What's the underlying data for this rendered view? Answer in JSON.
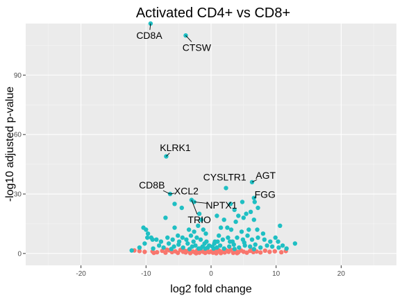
{
  "chart_data": {
    "type": "scatter",
    "title": "Activated CD4+ vs CD8+",
    "xlabel": "log2 fold change",
    "ylabel": "-log10 adjusted p-value",
    "xlim": [
      -28.5,
      28.5
    ],
    "ylim": [
      -6,
      116
    ],
    "x_ticks": [
      -20,
      -10,
      0,
      10,
      20
    ],
    "y_ticks": [
      0,
      30,
      60,
      90
    ],
    "x_tick_labels": [
      "-20",
      "-10",
      "0",
      "10",
      "20"
    ],
    "y_tick_labels": [
      "0",
      "30",
      "60",
      "90"
    ],
    "grid": true,
    "legend": "none",
    "colors": {
      "panel": "#EBEBEB",
      "grid_major": "#FFFFFF",
      "significant": "#1FBFC3",
      "not_significant": "#F8766D",
      "tick": "#4D4D4D"
    },
    "series": [
      {
        "color": "#F8766D",
        "points": [
          [
            -11.8,
            1.5
          ],
          [
            -11.0,
            1.2
          ],
          [
            -10.2,
            0.8
          ],
          [
            -9.0,
            1.0
          ],
          [
            -8.3,
            0.6
          ],
          [
            -7.5,
            1.3
          ],
          [
            -7.0,
            0.4
          ],
          [
            -6.4,
            1.6
          ],
          [
            -6.0,
            0.7
          ],
          [
            -5.5,
            1.1
          ],
          [
            -5.1,
            0.3
          ],
          [
            -4.7,
            1.8
          ],
          [
            -4.3,
            0.9
          ],
          [
            -3.9,
            0.5
          ],
          [
            -3.5,
            1.4
          ],
          [
            -3.2,
            0.2
          ],
          [
            -2.8,
            1.0
          ],
          [
            -2.5,
            0.6
          ],
          [
            -2.1,
            1.7
          ],
          [
            -1.8,
            0.4
          ],
          [
            -1.5,
            1.2
          ],
          [
            -1.2,
            0.8
          ],
          [
            -0.9,
            0.3
          ],
          [
            -0.6,
            1.5
          ],
          [
            -0.3,
            0.6
          ],
          [
            0.0,
            1.0
          ],
          [
            0.3,
            0.4
          ],
          [
            0.6,
            1.3
          ],
          [
            0.9,
            0.7
          ],
          [
            1.2,
            1.6
          ],
          [
            1.5,
            0.2
          ],
          [
            1.8,
            1.1
          ],
          [
            2.1,
            0.5
          ],
          [
            2.4,
            1.4
          ],
          [
            2.7,
            0.8
          ],
          [
            3.0,
            1.9
          ],
          [
            3.4,
            0.3
          ],
          [
            3.8,
            1.2
          ],
          [
            4.2,
            0.6
          ],
          [
            4.6,
            1.5
          ],
          [
            5.0,
            0.9
          ],
          [
            5.5,
            0.4
          ],
          [
            6.0,
            1.3
          ],
          [
            6.5,
            0.7
          ],
          [
            7.0,
            1.0
          ],
          [
            7.6,
            0.5
          ],
          [
            8.3,
            1.4
          ],
          [
            9.0,
            0.8
          ],
          [
            9.8,
            1.1
          ],
          [
            10.8,
            0.6
          ],
          [
            11.5,
            1.2
          ],
          [
            -8.8,
            0.3
          ],
          [
            -6.8,
            1.9
          ],
          [
            -4.0,
            1.3
          ],
          [
            -2.3,
            0.1
          ],
          [
            -0.8,
            1.9
          ],
          [
            0.8,
            0.1
          ],
          [
            2.2,
            1.8
          ],
          [
            4.0,
            0.2
          ],
          [
            6.2,
            1.8
          ]
        ]
      },
      {
        "color": "#1FBFC3",
        "points": [
          [
            -9.3,
            116
          ],
          [
            -3.9,
            110
          ],
          [
            -6.9,
            49
          ],
          [
            6.3,
            36
          ],
          [
            2.3,
            33
          ],
          [
            6.6,
            28
          ],
          [
            6.7,
            26
          ],
          [
            -6.3,
            30
          ],
          [
            -3.0,
            27
          ],
          [
            -2.6,
            26
          ],
          [
            -5.6,
            25
          ],
          [
            4.8,
            26
          ],
          [
            3.0,
            25
          ],
          [
            7.2,
            23
          ],
          [
            3.6,
            22
          ],
          [
            5.4,
            20
          ],
          [
            6.1,
            21
          ],
          [
            -4.5,
            23
          ],
          [
            -1.8,
            20
          ],
          [
            4.2,
            19
          ],
          [
            0.9,
            19
          ],
          [
            5.0,
            18
          ],
          [
            6.6,
            17
          ],
          [
            -7.0,
            18
          ],
          [
            -2.0,
            14
          ],
          [
            -1.5,
            17
          ],
          [
            2.0,
            17
          ],
          [
            3.8,
            16
          ],
          [
            -10.4,
            13
          ],
          [
            -10.0,
            12
          ],
          [
            -9.7,
            10
          ],
          [
            -9.8,
            8
          ],
          [
            -9.2,
            8
          ],
          [
            -9.0,
            7
          ],
          [
            -8.4,
            7
          ],
          [
            10.6,
            14
          ],
          [
            12.9,
            5
          ],
          [
            9.9,
            8
          ],
          [
            10.3,
            6
          ],
          [
            8.0,
            10
          ],
          [
            7.1,
            12
          ],
          [
            5.8,
            12
          ],
          [
            4.7,
            11
          ],
          [
            3.1,
            12
          ],
          [
            2.5,
            13
          ],
          [
            1.5,
            13
          ],
          [
            -5.6,
            13
          ],
          [
            -3.4,
            12
          ],
          [
            -2.6,
            11
          ],
          [
            -1.2,
            12
          ],
          [
            -0.8,
            10
          ],
          [
            -12.2,
            1.5
          ],
          [
            -6.7,
            8
          ],
          [
            -5.9,
            7
          ],
          [
            -5.1,
            9
          ],
          [
            -4.4,
            8
          ],
          [
            -3.8,
            7
          ],
          [
            -3.1,
            9
          ],
          [
            -2.2,
            8
          ],
          [
            -1.6,
            7
          ],
          [
            -0.7,
            6
          ],
          [
            0.6,
            6
          ],
          [
            1.2,
            9
          ],
          [
            1.8,
            7
          ],
          [
            2.6,
            8
          ],
          [
            3.3,
            6
          ],
          [
            4.0,
            8
          ],
          [
            4.9,
            7
          ],
          [
            5.6,
            9
          ],
          [
            6.3,
            7
          ],
          [
            7.2,
            8
          ],
          [
            8.2,
            7
          ],
          [
            -8.0,
            4
          ],
          [
            -7.3,
            3
          ],
          [
            -6.5,
            5
          ],
          [
            -5.7,
            3.5
          ],
          [
            -5.0,
            4.5
          ],
          [
            -4.3,
            3
          ],
          [
            -3.6,
            5
          ],
          [
            -2.9,
            3.5
          ],
          [
            -2.4,
            4
          ],
          [
            -1.9,
            2.5
          ],
          [
            -1.3,
            3.5
          ],
          [
            -0.9,
            2.5
          ],
          [
            -0.5,
            3
          ],
          [
            0.4,
            2.5
          ],
          [
            0.9,
            3
          ],
          [
            1.4,
            4
          ],
          [
            2.0,
            2.5
          ],
          [
            2.8,
            3.5
          ],
          [
            3.5,
            4.5
          ],
          [
            4.3,
            3
          ],
          [
            5.2,
            4
          ],
          [
            6.0,
            3.5
          ],
          [
            6.8,
            4.5
          ],
          [
            7.6,
            3
          ],
          [
            8.6,
            4
          ],
          [
            9.4,
            3.5
          ],
          [
            10.4,
            3
          ],
          [
            11.6,
            2.5
          ],
          [
            -11.0,
            3
          ],
          [
            -10.2,
            5
          ],
          [
            -7.7,
            6
          ],
          [
            -1.0,
            5
          ],
          [
            0.5,
            5
          ],
          [
            1.0,
            6
          ],
          [
            -0.3,
            4
          ],
          [
            0.2,
            3.5
          ],
          [
            -2.7,
            6
          ],
          [
            2.9,
            6
          ],
          [
            -4.9,
            6
          ],
          [
            5.1,
            5.5
          ],
          [
            -8.9,
            2.5
          ],
          [
            9.1,
            6
          ],
          [
            11.0,
            4
          ],
          [
            -6.1,
            2.3
          ],
          [
            6.6,
            2.2
          ],
          [
            -3.3,
            2.2
          ],
          [
            3.6,
            2.3
          ],
          [
            -1.6,
            2.6
          ]
        ]
      }
    ],
    "annotations": [
      {
        "label": "CD8A",
        "x": -9.3,
        "y": 116,
        "tx": -9.5,
        "ty": 110
      },
      {
        "label": "CTSW",
        "x": -3.9,
        "y": 110,
        "tx": -2.2,
        "ty": 104
      },
      {
        "label": "KLRK1",
        "x": -6.9,
        "y": 49,
        "tx": -5.5,
        "ty": 53.5
      },
      {
        "label": "CYSLTR1",
        "x": 2.3,
        "y": 33,
        "tx": 2.1,
        "ty": 38.5
      },
      {
        "label": "AGT",
        "x": 6.3,
        "y": 36,
        "tx": 8.4,
        "ty": 39.5
      },
      {
        "label": "FGG",
        "x": 6.6,
        "y": 28,
        "tx": 8.3,
        "ty": 29.8
      },
      {
        "label": "CD8B",
        "x": -6.3,
        "y": 30,
        "tx": -9.1,
        "ty": 34.5
      },
      {
        "label": "XCL2",
        "x": -6.3,
        "y": 30,
        "tx": -3.8,
        "ty": 31.5
      },
      {
        "label": "NPTX1",
        "x": -2.6,
        "y": 26,
        "tx": 1.6,
        "ty": 24.5
      },
      {
        "label": "TRIO",
        "x": -3.0,
        "y": 27,
        "tx": -1.8,
        "ty": 17
      }
    ]
  }
}
